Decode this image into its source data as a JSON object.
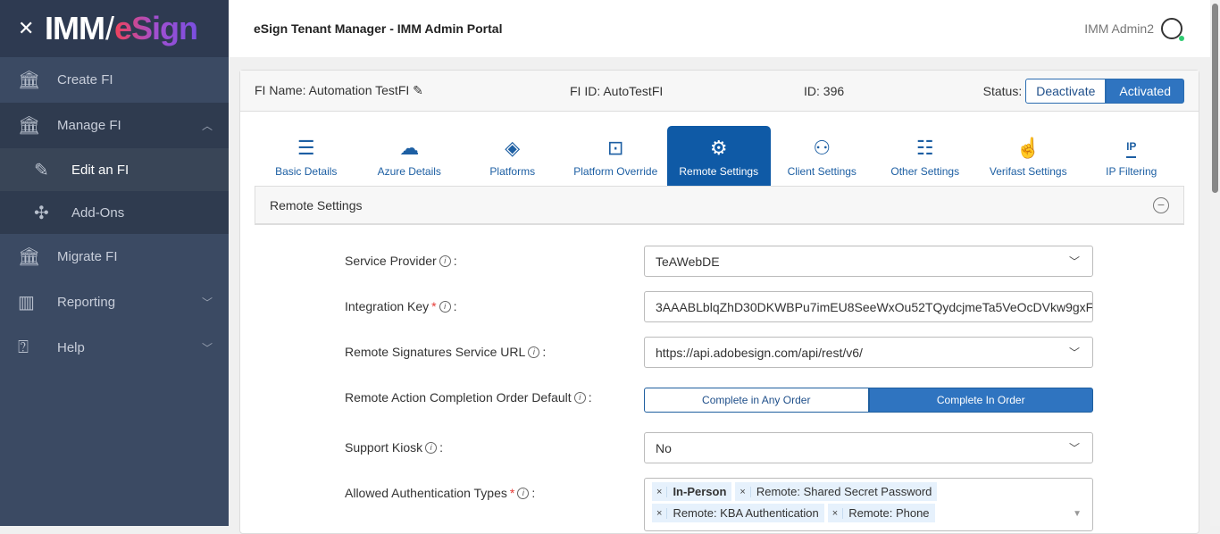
{
  "sidebar": {
    "logo_imm": "IMM",
    "logo_esign": "eSign",
    "items": [
      {
        "label": "Create FI",
        "icon": "bank-plus-icon"
      },
      {
        "label": "Manage FI",
        "icon": "bank-gear-icon"
      },
      {
        "label": "Edit an FI",
        "icon": "pencil-icon"
      },
      {
        "label": "Add-Ons",
        "icon": "puzzle-icon"
      },
      {
        "label": "Migrate FI",
        "icon": "bank-arrow-icon"
      },
      {
        "label": "Reporting",
        "icon": "bar-chart-icon"
      },
      {
        "label": "Help",
        "icon": "help-bubble-icon"
      }
    ]
  },
  "header": {
    "title": "eSign Tenant Manager - IMM Admin Portal",
    "user": "IMM Admin2"
  },
  "info": {
    "fi_name": "FI Name: Automation TestFI",
    "fi_id": "FI ID: AutoTestFI",
    "id": "ID: 396",
    "status_label": "Status:",
    "deactivate": "Deactivate",
    "activated": "Activated"
  },
  "tabs": [
    {
      "label": "Basic Details"
    },
    {
      "label": "Azure Details"
    },
    {
      "label": "Platforms"
    },
    {
      "label": "Platform Override"
    },
    {
      "label": "Remote Settings"
    },
    {
      "label": "Client Settings"
    },
    {
      "label": "Other Settings"
    },
    {
      "label": "Verifast Settings"
    },
    {
      "label": "IP Filtering",
      "icon_text": "IP"
    }
  ],
  "section": {
    "title": "Remote Settings"
  },
  "form": {
    "service_provider": {
      "label": "Service Provider",
      "value": "TeAWebDE"
    },
    "integration_key": {
      "label": "Integration Key",
      "value": "3AAABLblqZhD30DKWBPu7imEU8SeeWxOu52TQydcjmeTa5VeOcDVkw9gxF"
    },
    "service_url": {
      "label": "Remote Signatures Service URL",
      "value": "https://api.adobesign.com/api/rest/v6/"
    },
    "completion_order": {
      "label": "Remote Action Completion Order Default",
      "opt1": "Complete in Any Order",
      "opt2": "Complete In Order"
    },
    "support_kiosk": {
      "label": "Support Kiosk",
      "value": "No"
    },
    "auth_types": {
      "label": "Allowed Authentication Types",
      "chips": [
        "In-Person",
        "Remote: Shared Secret Password",
        "Remote: KBA Authentication",
        "Remote: Phone"
      ]
    }
  },
  "colors": {
    "accent": "#0f5aa6",
    "sidebar": "#3b4a63"
  }
}
